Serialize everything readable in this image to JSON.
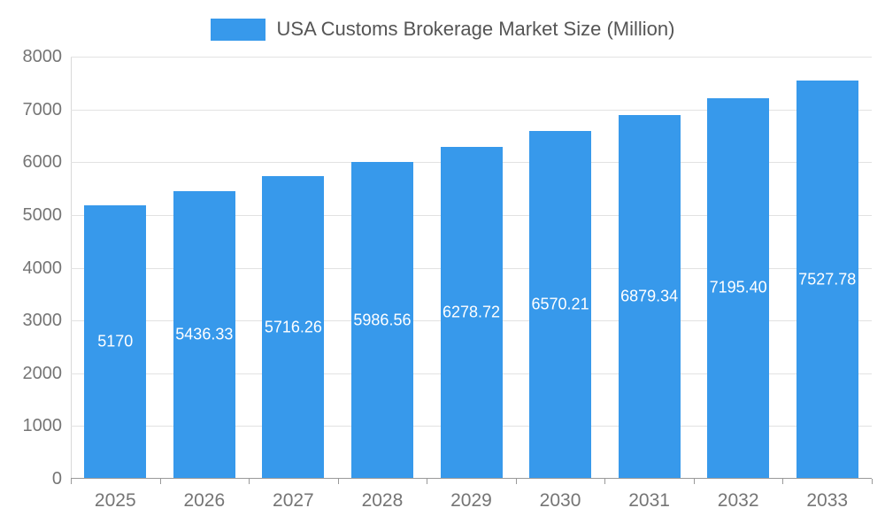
{
  "chart_data": {
    "type": "bar",
    "title": "USA Customs Brokerage Market Size (Million)",
    "categories": [
      "2025",
      "2026",
      "2027",
      "2028",
      "2029",
      "2030",
      "2031",
      "2032",
      "2033"
    ],
    "values": [
      5170,
      5436.33,
      5716.26,
      5986.56,
      6278.72,
      6570.21,
      6879.34,
      7195.4,
      7527.78
    ],
    "value_labels": [
      "5170",
      "5436.33",
      "5716.26",
      "5986.56",
      "6278.72",
      "6570.21",
      "6879.34",
      "7195.40",
      "7527.78"
    ],
    "xlabel": "",
    "ylabel": "",
    "ylim": [
      0,
      8000
    ],
    "ytick_interval": 1000,
    "ytick_labels": [
      "0",
      "1000",
      "2000",
      "3000",
      "4000",
      "5000",
      "6000",
      "7000",
      "8000"
    ],
    "grid": true,
    "legend_position": "top",
    "value_label_position": "inside-center",
    "colors": {
      "bar": "#3799EB",
      "bar_label": "#FFFFFF",
      "axis_text": "#757575",
      "title_text": "#555555",
      "gridline": "#E2E2E2",
      "axis_line": "#999999"
    }
  }
}
